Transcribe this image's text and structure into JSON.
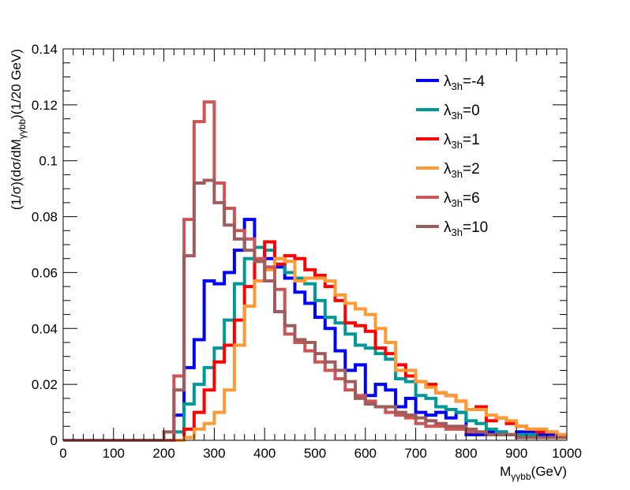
{
  "chart_data": {
    "type": "line",
    "step": true,
    "ylabel": "(1/σ)(dσ/dM",
    "ylabel_sub": "γγbb",
    "ylabel_suffix": ")(1/20 GeV)",
    "xlabel_main": "M",
    "xlabel_sub": "γγbb",
    "xlabel_suffix": "(GeV)",
    "xlim": [
      0,
      1000
    ],
    "ylim": [
      0,
      0.14
    ],
    "bin_width": 20,
    "x_ticks": [
      "0",
      "100",
      "200",
      "300",
      "400",
      "500",
      "600",
      "700",
      "800",
      "900",
      "1000"
    ],
    "y_ticks": [
      "0",
      "0.02",
      "0.04",
      "0.06",
      "0.08",
      "0.1",
      "0.12",
      "0.14"
    ],
    "legend_symbol": "λ",
    "legend_sub": "3h",
    "legend_position": "top-right",
    "series": [
      {
        "name": "λ3h=-4",
        "legend_value": "=-4",
        "color": "#0000ff",
        "values": [
          0,
          0,
          0,
          0,
          0,
          0,
          0,
          0,
          0,
          0,
          0,
          0.009,
          0.026,
          0.036,
          0.057,
          0.056,
          0.06,
          0.068,
          0.079,
          0.069,
          0.065,
          0.062,
          0.058,
          0.053,
          0.049,
          0.044,
          0.04,
          0.032,
          0.025,
          0.027,
          0.016,
          0.02,
          0.018,
          0.012,
          0.015,
          0.01,
          0.009,
          0.01,
          0.008,
          0.01,
          0.002,
          0.002,
          0.003,
          0.003,
          0.002,
          0.003,
          0.003,
          0.002,
          0.002,
          0.001
        ]
      },
      {
        "name": "λ3h=0",
        "legend_value": "=0",
        "color": "#009999",
        "values": [
          0,
          0,
          0,
          0,
          0,
          0,
          0,
          0,
          0,
          0,
          0,
          0.003,
          0.013,
          0.02,
          0.026,
          0.033,
          0.043,
          0.056,
          0.065,
          0.069,
          0.068,
          0.065,
          0.06,
          0.058,
          0.056,
          0.05,
          0.044,
          0.042,
          0.038,
          0.034,
          0.033,
          0.031,
          0.029,
          0.022,
          0.021,
          0.016,
          0.015,
          0.012,
          0.011,
          0.01,
          0.007,
          0.006,
          0.004,
          0.003,
          0.002,
          0.002,
          0.002,
          0.001,
          0.001,
          0.001
        ]
      },
      {
        "name": "λ3h=1",
        "legend_value": "=1",
        "color": "#ff0000",
        "values": [
          0,
          0,
          0,
          0,
          0,
          0,
          0,
          0,
          0,
          0,
          0,
          0,
          0.004,
          0.01,
          0.018,
          0.028,
          0.034,
          0.043,
          0.055,
          0.064,
          0.071,
          0.063,
          0.066,
          0.065,
          0.061,
          0.059,
          0.055,
          0.05,
          0.042,
          0.041,
          0.039,
          0.033,
          0.031,
          0.027,
          0.023,
          0.021,
          0.02,
          0.017,
          0.016,
          0.014,
          0.011,
          0.012,
          0.007,
          0.008,
          0.006,
          0.005,
          0.004,
          0.003,
          0.003,
          0.002
        ]
      },
      {
        "name": "λ3h=2",
        "legend_value": "=2",
        "color": "#ff9933",
        "values": [
          0,
          0,
          0,
          0,
          0,
          0,
          0,
          0,
          0,
          0,
          0,
          0,
          0.001,
          0.004,
          0.006,
          0.01,
          0.018,
          0.034,
          0.048,
          0.057,
          0.061,
          0.065,
          0.064,
          0.057,
          0.058,
          0.058,
          0.057,
          0.052,
          0.049,
          0.047,
          0.045,
          0.04,
          0.035,
          0.025,
          0.025,
          0.021,
          0.019,
          0.017,
          0.016,
          0.014,
          0.011,
          0.011,
          0.009,
          0.008,
          0.007,
          0.005,
          0.004,
          0.004,
          0.003,
          0.002
        ]
      },
      {
        "name": "λ3h=6",
        "legend_value": "=6",
        "color": "#cc5555",
        "values": [
          0,
          0,
          0,
          0,
          0,
          0,
          0,
          0,
          0,
          0,
          0,
          0.023,
          0.079,
          0.114,
          0.121,
          0.092,
          0.083,
          0.075,
          0.072,
          0.065,
          0.062,
          0.054,
          0.038,
          0.035,
          0.032,
          0.028,
          0.025,
          0.022,
          0.018,
          0.016,
          0.014,
          0.012,
          0.01,
          0.009,
          0.008,
          0.006,
          0.005,
          0.005,
          0.004,
          0.004,
          0.003,
          0.003,
          0.002,
          0.002,
          0.002,
          0.001,
          0.001,
          0.001,
          0.001,
          0.001
        ]
      },
      {
        "name": "λ3h=10",
        "legend_value": "=10",
        "color": "#a05c5c",
        "values": [
          0,
          0,
          0,
          0,
          0,
          0,
          0,
          0,
          0,
          0,
          0.003,
          0.018,
          0.066,
          0.092,
          0.093,
          0.085,
          0.077,
          0.072,
          0.068,
          0.064,
          0.057,
          0.046,
          0.041,
          0.036,
          0.035,
          0.031,
          0.028,
          0.025,
          0.021,
          0.015,
          0.013,
          0.012,
          0.012,
          0.01,
          0.009,
          0.008,
          0.007,
          0.006,
          0.005,
          0.005,
          0.004,
          0.003,
          0.002,
          0.002,
          0.002,
          0.001,
          0.001,
          0.001,
          0.001,
          0.001
        ]
      }
    ]
  }
}
